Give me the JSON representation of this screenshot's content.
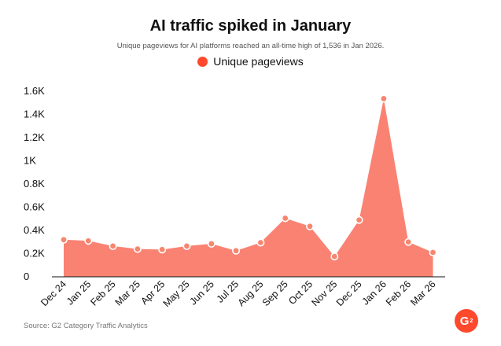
{
  "header": {
    "title": "AI traffic spiked in January",
    "subtitle": "Unique pageviews for AI platforms reached an all-time high of 1,536 in Jan 2026."
  },
  "footer": {
    "source": "Source: G2 Category Traffic Analytics",
    "logo_text": "G",
    "logo_sup": "2"
  },
  "colors": {
    "area_fill": "#fa8272",
    "point_fill": "#f7866f",
    "legend_swatch": "#ff492c",
    "logo": "#ff492c",
    "axis": "#111111"
  },
  "chart_data": {
    "type": "area",
    "categories": [
      "Dec 24",
      "Jan 25",
      "Feb 25",
      "Mar 25",
      "Apr 25",
      "May 25",
      "Jun 25",
      "Jul 25",
      "Aug 25",
      "Sep 25",
      "Oct 25",
      "Nov 25",
      "Dec 25",
      "Jan 26",
      "Feb 26",
      "Mar 26"
    ],
    "series": [
      {
        "name": "Unique pageviews",
        "values": [
          320,
          310,
          265,
          240,
          235,
          265,
          285,
          225,
          295,
          505,
          435,
          175,
          490,
          1536,
          300,
          210
        ]
      }
    ],
    "y_ticks": [
      "0",
      "0.2K",
      "0.4K",
      "0.6K",
      "0.8K",
      "1K",
      "1.2K",
      "1.4K",
      "1.6K"
    ],
    "ylim": [
      0,
      1600
    ],
    "grid": false,
    "legend_position": "top-center"
  }
}
